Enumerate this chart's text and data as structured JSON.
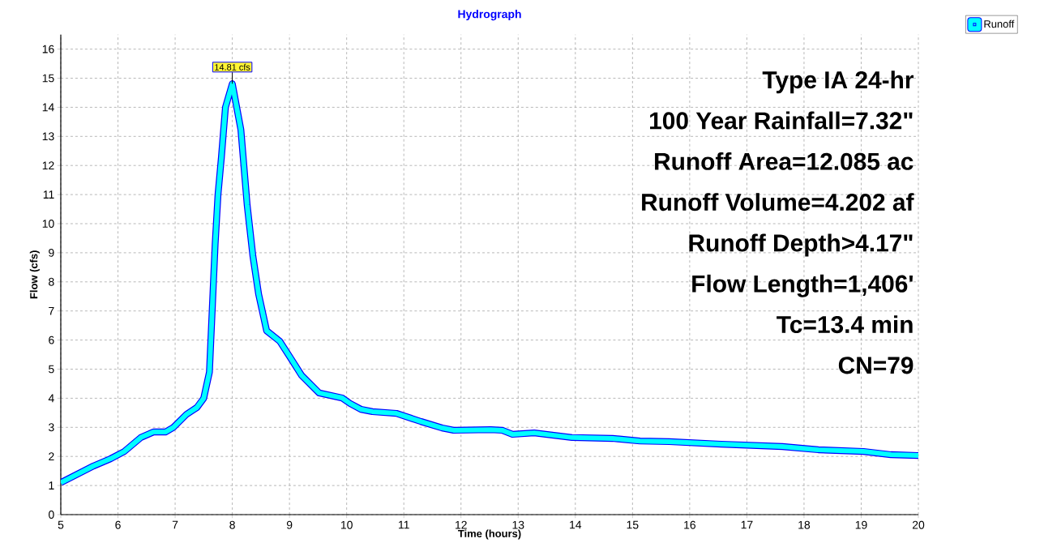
{
  "chart_data": {
    "type": "line",
    "title": "Hydrograph",
    "xlabel": "Time  (hours)",
    "ylabel": "Flow  (cfs)",
    "x": [
      5.0,
      5.57,
      5.87,
      6.11,
      6.4,
      6.62,
      6.83,
      6.97,
      7.2,
      7.38,
      7.5,
      7.6,
      7.7,
      7.75,
      7.81,
      7.88,
      8.0,
      8.15,
      8.26,
      8.36,
      8.46,
      8.6,
      8.83,
      9.03,
      9.21,
      9.52,
      9.92,
      10.06,
      10.25,
      10.45,
      10.87,
      11.3,
      11.67,
      11.87,
      12.52,
      12.72,
      12.9,
      13.28,
      13.94,
      14.65,
      15.13,
      15.64,
      16.55,
      17.62,
      18.25,
      19.04,
      19.52,
      20.0
    ],
    "series": [
      {
        "name": "Runoff",
        "color": "#00ffff",
        "values": [
          1.1,
          1.67,
          1.92,
          2.17,
          2.65,
          2.84,
          2.84,
          3.0,
          3.45,
          3.68,
          4.0,
          4.9,
          9.3,
          11.0,
          12.3,
          14.0,
          14.81,
          13.23,
          10.64,
          8.89,
          7.58,
          6.32,
          5.96,
          5.35,
          4.79,
          4.18,
          4.01,
          3.82,
          3.62,
          3.54,
          3.48,
          3.2,
          2.98,
          2.9,
          2.92,
          2.9,
          2.76,
          2.81,
          2.65,
          2.62,
          2.53,
          2.51,
          2.42,
          2.34,
          2.23,
          2.17,
          2.06,
          2.03
        ]
      }
    ],
    "xlim": [
      5,
      20
    ],
    "ylim": [
      0,
      16.5
    ],
    "xticks": [
      5,
      6,
      7,
      8,
      9,
      10,
      11,
      12,
      13,
      14,
      15,
      16,
      17,
      18,
      19,
      20
    ],
    "yticks": [
      0,
      1,
      2,
      3,
      4,
      5,
      6,
      7,
      8,
      9,
      10,
      11,
      12,
      13,
      14,
      15,
      16
    ],
    "grid": true,
    "legend": "top right",
    "marker": "none",
    "line_style": "solid",
    "annotations": [
      {
        "text": "14.81 cfs",
        "x": 8.0,
        "y": 14.81
      },
      "Type IA 24-hr",
      "100 Year Rainfall=7.32\"",
      "Runoff Area=12.085 ac",
      "Runoff Volume=4.202 af",
      "Runoff Depth>4.17\"",
      "Flow Length=1,406'",
      "Tc=13.4 min",
      "CN=79"
    ]
  }
}
